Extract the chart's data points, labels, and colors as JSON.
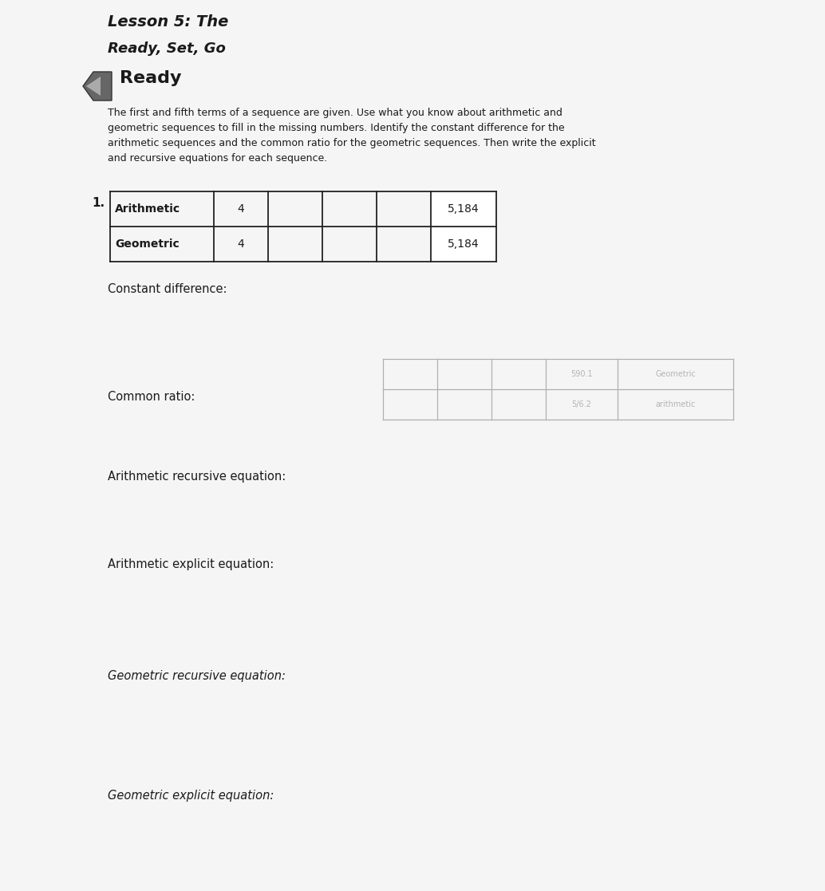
{
  "bg_color": "#d0d0d0",
  "page_color": "#f5f5f5",
  "title_line1": "Lesson 5: The",
  "title_line2": "Ready, Set, Go",
  "section_label": "Ready",
  "instruction_text": "The first and fifth terms of a sequence are given. Use what you know about arithmetic and\ngeometric sequences to fill in the missing numbers. Identify the constant difference for the\narithmetic sequences and the common ratio for the geometric sequences. Then write the explicit\nand recursive equations for each sequence.",
  "problem_number": "1.",
  "row1_label": "Arithmetic",
  "row2_label": "Geometric",
  "col1_val": "4",
  "col5_val": "5,184",
  "constant_difference_label": "Constant difference:",
  "common_ratio_label": "Common ratio:",
  "arith_recursive_label": "Arithmetic recursive equation:",
  "arith_explicit_label": "Arithmetic explicit equation:",
  "geo_recursive_label": "Geometric recursive equation:",
  "geo_explicit_label": "Geometric explicit equation:",
  "title_fontsize": 14,
  "subtitle_fontsize": 13,
  "ready_fontsize": 16,
  "instruction_fontsize": 9,
  "label_fontsize": 10.5,
  "problem_fontsize": 11,
  "table_label_fontsize": 10,
  "table_val_fontsize": 10
}
